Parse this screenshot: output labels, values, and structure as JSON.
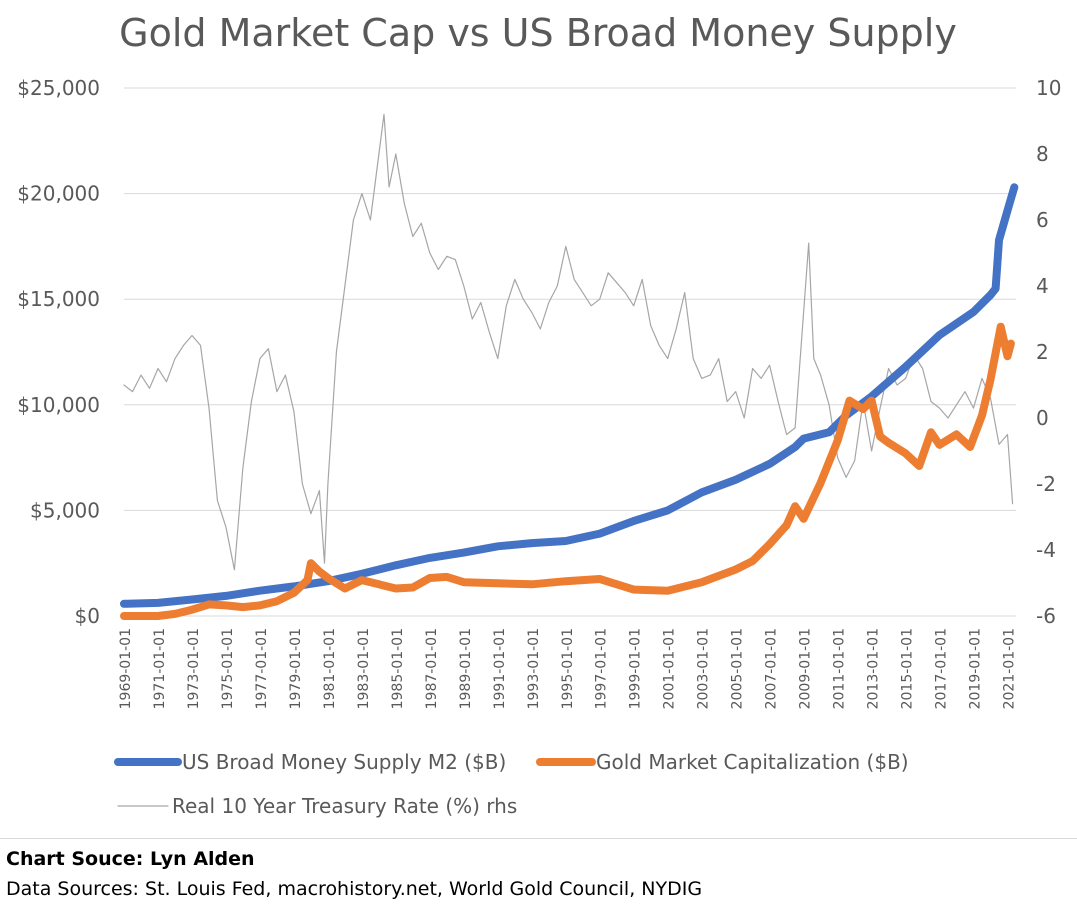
{
  "chart_data": {
    "type": "line",
    "title": "Gold Market Cap vs US Broad Money Supply",
    "left_axis": {
      "ticks": [
        0,
        5000,
        10000,
        15000,
        20000,
        25000
      ],
      "tick_labels": [
        "$0",
        "$5,000",
        "$10,000",
        "$15,000",
        "$20,000",
        "$25,000"
      ],
      "ylim": [
        0,
        25000
      ]
    },
    "right_axis": {
      "ticks": [
        -6,
        -4,
        -2,
        0,
        2,
        4,
        6,
        8,
        10
      ],
      "tick_labels": [
        "-6",
        "-4",
        "-2",
        "0",
        "2",
        "4",
        "6",
        "8",
        "10"
      ],
      "ylim": [
        -6,
        10
      ]
    },
    "x_axis": {
      "xlim": [
        1969.0,
        2021.5
      ],
      "tick_labels": [
        "1969-01-01",
        "1971-01-01",
        "1973-01-01",
        "1975-01-01",
        "1977-01-01",
        "1979-01-01",
        "1981-01-01",
        "1983-01-01",
        "1985-01-01",
        "1987-01-01",
        "1989-01-01",
        "1991-01-01",
        "1993-01-01",
        "1995-01-01",
        "1997-01-01",
        "1999-01-01",
        "2001-01-01",
        "2003-01-01",
        "2005-01-01",
        "2007-01-01",
        "2009-01-01",
        "2011-01-01",
        "2013-01-01",
        "2015-01-01",
        "2017-01-01",
        "2019-01-01",
        "2021-01-01"
      ],
      "tick_years": [
        1969,
        1971,
        1973,
        1975,
        1977,
        1979,
        1981,
        1983,
        1985,
        1987,
        1989,
        1991,
        1993,
        1995,
        1997,
        1999,
        2001,
        2003,
        2005,
        2007,
        2009,
        2011,
        2013,
        2015,
        2017,
        2019,
        2021
      ]
    },
    "grid": "horizontal",
    "legend_placement": "bottom",
    "series": [
      {
        "name": "US Broad Money Supply M2 ($B)",
        "axis": "left",
        "color": "#4472C4",
        "points": [
          [
            1969.0,
            580
          ],
          [
            1971.0,
            620
          ],
          [
            1973.0,
            780
          ],
          [
            1975.0,
            950
          ],
          [
            1977.0,
            1200
          ],
          [
            1979.0,
            1400
          ],
          [
            1981.0,
            1650
          ],
          [
            1983.0,
            2000
          ],
          [
            1985.0,
            2400
          ],
          [
            1987.0,
            2750
          ],
          [
            1989.0,
            3000
          ],
          [
            1991.0,
            3300
          ],
          [
            1993.0,
            3450
          ],
          [
            1995.0,
            3550
          ],
          [
            1997.0,
            3900
          ],
          [
            1999.0,
            4500
          ],
          [
            2001.0,
            5000
          ],
          [
            2003.0,
            5850
          ],
          [
            2005.0,
            6450
          ],
          [
            2007.0,
            7200
          ],
          [
            2008.5,
            8000
          ],
          [
            2009.0,
            8400
          ],
          [
            2010.5,
            8700
          ],
          [
            2011.5,
            9500
          ],
          [
            2013.0,
            10400
          ],
          [
            2015.0,
            11800
          ],
          [
            2017.0,
            13300
          ],
          [
            2019.0,
            14400
          ],
          [
            2020.0,
            15200
          ],
          [
            2020.3,
            15500
          ],
          [
            2020.5,
            17800
          ],
          [
            2021.0,
            19200
          ],
          [
            2021.4,
            20300
          ]
        ]
      },
      {
        "name": "Gold Market Capitalization ($B)",
        "axis": "left",
        "color": "#ED7D31",
        "points": [
          [
            1969.0,
            0
          ],
          [
            1971.0,
            0
          ],
          [
            1972.0,
            100
          ],
          [
            1973.0,
            300
          ],
          [
            1974.0,
            550
          ],
          [
            1975.0,
            500
          ],
          [
            1976.0,
            420
          ],
          [
            1977.0,
            500
          ],
          [
            1978.0,
            700
          ],
          [
            1979.0,
            1100
          ],
          [
            1979.8,
            1700
          ],
          [
            1980.0,
            2500
          ],
          [
            1980.5,
            2100
          ],
          [
            1981.0,
            1800
          ],
          [
            1982.0,
            1300
          ],
          [
            1983.0,
            1700
          ],
          [
            1984.0,
            1500
          ],
          [
            1985.0,
            1300
          ],
          [
            1986.0,
            1350
          ],
          [
            1987.0,
            1800
          ],
          [
            1988.0,
            1850
          ],
          [
            1989.0,
            1600
          ],
          [
            1991.0,
            1550
          ],
          [
            1993.0,
            1500
          ],
          [
            1995.0,
            1650
          ],
          [
            1997.0,
            1750
          ],
          [
            1999.0,
            1250
          ],
          [
            2001.0,
            1200
          ],
          [
            2003.0,
            1600
          ],
          [
            2005.0,
            2200
          ],
          [
            2006.0,
            2600
          ],
          [
            2007.0,
            3400
          ],
          [
            2008.0,
            4300
          ],
          [
            2008.5,
            5200
          ],
          [
            2009.0,
            4600
          ],
          [
            2010.0,
            6300
          ],
          [
            2011.0,
            8300
          ],
          [
            2011.7,
            10200
          ],
          [
            2012.5,
            9800
          ],
          [
            2013.0,
            10200
          ],
          [
            2013.5,
            8500
          ],
          [
            2014.0,
            8200
          ],
          [
            2015.0,
            7700
          ],
          [
            2015.8,
            7100
          ],
          [
            2016.5,
            8700
          ],
          [
            2017.0,
            8100
          ],
          [
            2018.0,
            8600
          ],
          [
            2018.8,
            8000
          ],
          [
            2019.5,
            9500
          ],
          [
            2020.0,
            11200
          ],
          [
            2020.6,
            13700
          ],
          [
            2021.0,
            12300
          ],
          [
            2021.2,
            12900
          ]
        ]
      },
      {
        "name": "Real 10 Year Treasury Rate (%) rhs",
        "axis": "right",
        "color": "#A6A6A6",
        "points": [
          [
            1969.0,
            1.0
          ],
          [
            1969.5,
            0.8
          ],
          [
            1970.0,
            1.3
          ],
          [
            1970.5,
            0.9
          ],
          [
            1971.0,
            1.5
          ],
          [
            1971.5,
            1.1
          ],
          [
            1972.0,
            1.8
          ],
          [
            1972.5,
            2.2
          ],
          [
            1973.0,
            2.5
          ],
          [
            1973.5,
            2.2
          ],
          [
            1974.0,
            0.3
          ],
          [
            1974.5,
            -2.5
          ],
          [
            1975.0,
            -3.3
          ],
          [
            1975.5,
            -4.6
          ],
          [
            1976.0,
            -1.5
          ],
          [
            1976.5,
            0.5
          ],
          [
            1977.0,
            1.8
          ],
          [
            1977.5,
            2.1
          ],
          [
            1978.0,
            0.8
          ],
          [
            1978.5,
            1.3
          ],
          [
            1979.0,
            0.2
          ],
          [
            1979.5,
            -2.0
          ],
          [
            1980.0,
            -2.9
          ],
          [
            1980.5,
            -2.2
          ],
          [
            1980.8,
            -4.4
          ],
          [
            1981.0,
            -2.0
          ],
          [
            1981.5,
            2.0
          ],
          [
            1982.0,
            4.0
          ],
          [
            1982.5,
            6.0
          ],
          [
            1983.0,
            6.8
          ],
          [
            1983.5,
            6.0
          ],
          [
            1984.0,
            8.0
          ],
          [
            1984.3,
            9.2
          ],
          [
            1984.6,
            7.0
          ],
          [
            1985.0,
            8.0
          ],
          [
            1985.5,
            6.5
          ],
          [
            1986.0,
            5.5
          ],
          [
            1986.5,
            5.9
          ],
          [
            1987.0,
            5.0
          ],
          [
            1987.5,
            4.5
          ],
          [
            1988.0,
            4.9
          ],
          [
            1988.5,
            4.8
          ],
          [
            1989.0,
            4.0
          ],
          [
            1989.5,
            3.0
          ],
          [
            1990.0,
            3.5
          ],
          [
            1990.5,
            2.6
          ],
          [
            1991.0,
            1.8
          ],
          [
            1991.5,
            3.4
          ],
          [
            1992.0,
            4.2
          ],
          [
            1992.5,
            3.6
          ],
          [
            1993.0,
            3.2
          ],
          [
            1993.5,
            2.7
          ],
          [
            1994.0,
            3.5
          ],
          [
            1994.5,
            4.0
          ],
          [
            1995.0,
            5.2
          ],
          [
            1995.5,
            4.2
          ],
          [
            1996.0,
            3.8
          ],
          [
            1996.5,
            3.4
          ],
          [
            1997.0,
            3.6
          ],
          [
            1997.5,
            4.4
          ],
          [
            1998.0,
            4.1
          ],
          [
            1998.5,
            3.8
          ],
          [
            1999.0,
            3.4
          ],
          [
            1999.5,
            4.2
          ],
          [
            2000.0,
            2.8
          ],
          [
            2000.5,
            2.2
          ],
          [
            2001.0,
            1.8
          ],
          [
            2001.5,
            2.7
          ],
          [
            2002.0,
            3.8
          ],
          [
            2002.5,
            1.8
          ],
          [
            2003.0,
            1.2
          ],
          [
            2003.5,
            1.3
          ],
          [
            2004.0,
            1.8
          ],
          [
            2004.5,
            0.5
          ],
          [
            2005.0,
            0.8
          ],
          [
            2005.5,
            0.0
          ],
          [
            2006.0,
            1.5
          ],
          [
            2006.5,
            1.2
          ],
          [
            2007.0,
            1.6
          ],
          [
            2007.5,
            0.5
          ],
          [
            2008.0,
            -0.5
          ],
          [
            2008.5,
            -0.3
          ],
          [
            2009.0,
            3.2
          ],
          [
            2009.3,
            5.3
          ],
          [
            2009.6,
            1.8
          ],
          [
            2010.0,
            1.3
          ],
          [
            2010.5,
            0.4
          ],
          [
            2011.0,
            -1.2
          ],
          [
            2011.5,
            -1.8
          ],
          [
            2012.0,
            -1.3
          ],
          [
            2012.5,
            0.5
          ],
          [
            2013.0,
            -1.0
          ],
          [
            2013.5,
            0.3
          ],
          [
            2014.0,
            1.5
          ],
          [
            2014.5,
            1.0
          ],
          [
            2015.0,
            1.2
          ],
          [
            2015.5,
            1.9
          ],
          [
            2016.0,
            1.5
          ],
          [
            2016.5,
            0.5
          ],
          [
            2017.0,
            0.3
          ],
          [
            2017.5,
            0.0
          ],
          [
            2018.0,
            0.4
          ],
          [
            2018.5,
            0.8
          ],
          [
            2019.0,
            0.3
          ],
          [
            2019.5,
            1.2
          ],
          [
            2020.0,
            0.6
          ],
          [
            2020.5,
            -0.8
          ],
          [
            2021.0,
            -0.5
          ],
          [
            2021.3,
            -2.6
          ]
        ]
      }
    ]
  },
  "legend": {
    "entries": [
      {
        "label": "US Broad Money Supply M2 ($B)",
        "color": "#4472C4"
      },
      {
        "label": "Gold Market Capitalization ($B)",
        "color": "#ED7D31"
      },
      {
        "label": "Real 10 Year Treasury Rate (%) rhs",
        "color": "#A6A6A6"
      }
    ]
  },
  "footer": {
    "credit": "Chart Souce: Lyn Alden",
    "sources": "Data Sources: St. Louis Fed, macrohistory.net, World Gold Council, NYDIG"
  }
}
